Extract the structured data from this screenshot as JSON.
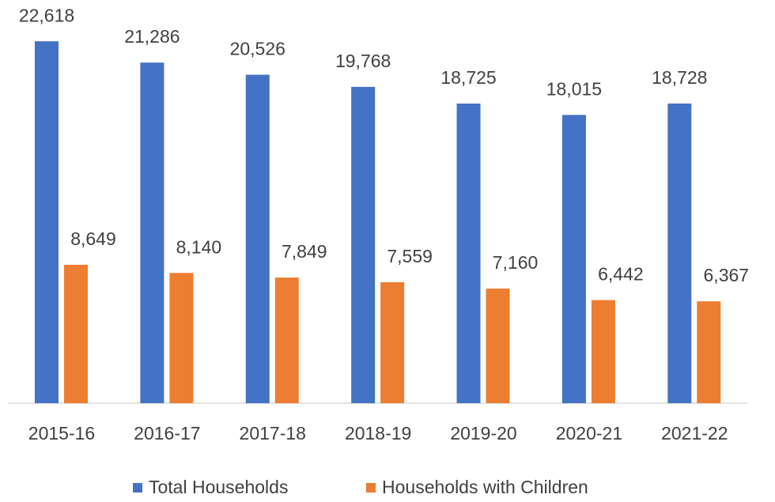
{
  "chart_data": {
    "type": "bar",
    "categories": [
      "2015-16",
      "2016-17",
      "2017-18",
      "2018-19",
      "2019-20",
      "2020-21",
      "2021-22"
    ],
    "series": [
      {
        "name": "Total Households",
        "color": "#4472c4",
        "values": [
          22618,
          21286,
          20526,
          19768,
          18725,
          18015,
          18728
        ],
        "value_labels": [
          "22,618",
          "21,286",
          "20,526",
          "19,768",
          "18,725",
          "18,015",
          "18,728"
        ]
      },
      {
        "name": "Households with Children",
        "color": "#ed7d31",
        "values": [
          8649,
          8140,
          7849,
          7559,
          7160,
          6442,
          6367
        ],
        "value_labels": [
          "8,649",
          "8,140",
          "7,849",
          "7,559",
          "7,160",
          "6,442",
          "6,367"
        ]
      }
    ],
    "ylim": [
      0,
      25000
    ],
    "legend": "bottom"
  }
}
